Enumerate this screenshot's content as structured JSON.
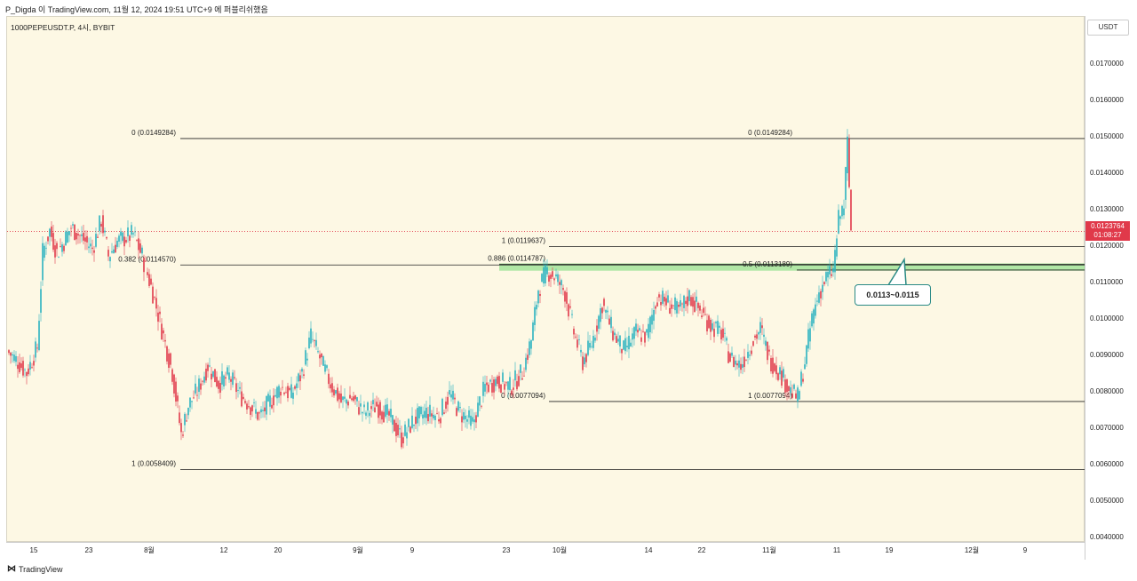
{
  "header": {
    "title": "P_Digda 이 TradingView.com, 11월 12, 2024 19:51 UTC+9 에 퍼블리쉬했음",
    "symbol": "1000PEPEUSDT.P, 4시, BYBIT"
  },
  "price_axis": {
    "currency": "USDT",
    "ticks": [
      "0.0170000",
      "0.0160000",
      "0.0150000",
      "0.0140000",
      "0.0130000",
      "0.0120000",
      "0.0110000",
      "0.0100000",
      "0.0090000",
      "0.0080000",
      "0.0070000",
      "0.0060000",
      "0.0050000",
      "0.0040000"
    ],
    "tick_values": [
      0.017,
      0.016,
      0.015,
      0.014,
      0.013,
      0.012,
      0.011,
      0.01,
      0.009,
      0.008,
      0.007,
      0.006,
      0.005,
      0.004
    ],
    "current_price": "0.0123764",
    "countdown": "01:08:27"
  },
  "time_axis": {
    "labels": [
      "15",
      "23",
      "8월",
      "12",
      "20",
      "9월",
      "9",
      "23",
      "10월",
      "14",
      "22",
      "11월",
      "11",
      "19",
      "12월",
      "9"
    ]
  },
  "fib_labels": [
    {
      "text": "0 (0.0149284)",
      "value": 0.0149284
    },
    {
      "text": "0.382 (0.0114570)",
      "value": 0.011457
    },
    {
      "text": "1 (0.0058409)",
      "value": 0.0058409
    },
    {
      "text": "1 (0.0119637)",
      "value": 0.0119637
    },
    {
      "text": "0.886 (0.0114787)",
      "value": 0.0114787
    },
    {
      "text": "0 (0.0077094)",
      "value": 0.0077094
    },
    {
      "text": "0 (0.0149284)",
      "value": 0.0149284
    },
    {
      "text": "0.5 (0.0113189)",
      "value": 0.0113189
    },
    {
      "text": "1 (0.0077094)",
      "value": 0.0077094
    }
  ],
  "zone": {
    "label": "0.0113~0.0115",
    "low": 0.0113,
    "high": 0.0115,
    "color": "#8fe08a"
  },
  "colors": {
    "up": "#2bb3c0",
    "down": "#e0394a",
    "background": "#fdf8e4",
    "line": "#222222",
    "callout": "#2a8a86"
  },
  "footer": {
    "brand": "TradingView"
  },
  "chart_data": {
    "type": "line",
    "title": "1000PEPEUSDT.P, 4시, BYBIT",
    "xlabel": "",
    "ylabel": "USDT",
    "ylim": [
      0.0035,
      0.0178
    ],
    "grid": false,
    "x": [
      "15",
      "23",
      "8월",
      "12",
      "20",
      "9월",
      "9",
      "23",
      "10월",
      "14",
      "22",
      "11월",
      "11"
    ],
    "series": [
      {
        "values": [
          0.0089,
          0.0125,
          0.0117,
          0.0076,
          0.0077,
          0.008,
          0.0069,
          0.0082,
          0.0113,
          0.0104,
          0.0105,
          0.0084,
          0.0123764
        ]
      }
    ],
    "annotations": [
      "0 (0.0149284)",
      "0.382 (0.0114570)",
      "1 (0.0058409)",
      "1 (0.0119637)",
      "0.886 (0.0114787)",
      "0 (0.0077094)",
      "0.5 (0.0113189)",
      "1 (0.0077094)",
      "0.0113~0.0115"
    ]
  }
}
